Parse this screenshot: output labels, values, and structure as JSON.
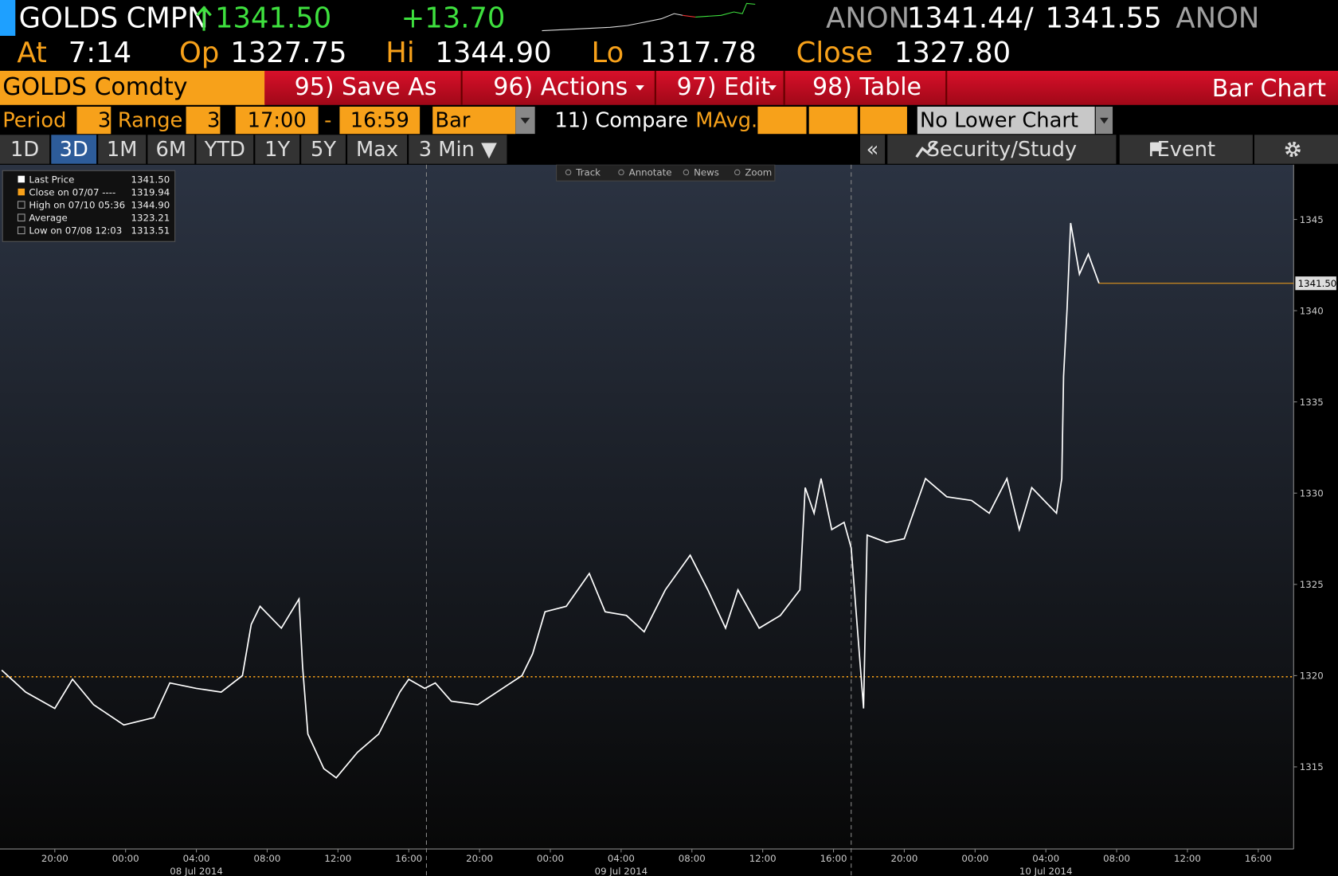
{
  "header": {
    "ticker": "GOLDS",
    "source": "CMPN",
    "last": "1341.50",
    "change": "+13.70",
    "bid_source": "ANON",
    "bid": "1341.44",
    "separator": "/",
    "ask": "1341.55",
    "ask_source": "ANON"
  },
  "quote": {
    "at_label": "At",
    "time": "7:14",
    "open_label": "Op",
    "open": "1327.75",
    "high_label": "Hi",
    "high": "1344.90",
    "low_label": "Lo",
    "low": "1317.78",
    "close_label": "Close",
    "close": "1327.80"
  },
  "menu": {
    "security": "GOLDS Comdty",
    "buttons": [
      "95) Save As",
      "96) Actions",
      "97) Edit",
      "98) Table"
    ],
    "title": "Bar Chart"
  },
  "params": {
    "period_label": "Period",
    "period": "3",
    "range_label": "Range",
    "range": "3",
    "start": "17:00",
    "dash": "-",
    "end": "16:59",
    "style": "Bar",
    "compare": "11) Compare",
    "mavg": "MAvg.",
    "lower": "No Lower Chart"
  },
  "tabs": [
    "1D",
    "3D",
    "1M",
    "6M",
    "YTD",
    "1Y",
    "5Y",
    "Max",
    "3 Min ▼"
  ],
  "side_tabs": {
    "collapse": "«",
    "study": "Security/Study",
    "event": "Event"
  },
  "toolbar": [
    "Track",
    "Annotate",
    "News",
    "Zoom"
  ],
  "legend": [
    {
      "name": "Last Price",
      "value": "1341.50"
    },
    {
      "name": "Close on 07/07 ----",
      "value": "1319.94"
    },
    {
      "name": "High on 07/10 05:36",
      "value": "1344.90"
    },
    {
      "name": "Average",
      "value": "1323.21"
    },
    {
      "name": "Low on 07/08 12:03",
      "value": "1313.51"
    }
  ],
  "chart_data": {
    "type": "line",
    "grid": false,
    "series": [
      {
        "name": "Last Price",
        "color": "#ffffff",
        "x": [
          0,
          1.35,
          3.0,
          4.0,
          5.2,
          6.9,
          8.6,
          9.5,
          11.0,
          12.4,
          13.6,
          14.1,
          14.6,
          15.8,
          16.8,
          17.0,
          17.3,
          18.2,
          18.9,
          20.1,
          21.3,
          22.5,
          23.0,
          23.9,
          24.5,
          25.4,
          26.9,
          28.3,
          29.4,
          30.0,
          30.7,
          31.9,
          33.2,
          34.1,
          35.3,
          36.3,
          37.5,
          38.9,
          39.9,
          40.9,
          41.6,
          42.8,
          44.0,
          45.1,
          45.4,
          45.9,
          46.3,
          46.9,
          47.6,
          48.0,
          48.7,
          48.9,
          50.0,
          51.0,
          52.2,
          53.4,
          54.8,
          55.8,
          56.8,
          57.5,
          58.2,
          59.6,
          59.9,
          60.0,
          60.2,
          60.4,
          60.9,
          61.4,
          62.0
        ],
        "values": [
          1320.3,
          1319.1,
          1318.2,
          1319.8,
          1318.4,
          1317.3,
          1317.7,
          1319.6,
          1319.3,
          1319.1,
          1320.0,
          1322.8,
          1323.8,
          1322.6,
          1324.2,
          1320.5,
          1316.8,
          1314.9,
          1314.4,
          1315.8,
          1316.8,
          1319.1,
          1319.8,
          1319.3,
          1319.6,
          1318.6,
          1318.4,
          1319.3,
          1320.0,
          1321.2,
          1323.5,
          1323.8,
          1325.6,
          1323.5,
          1323.3,
          1322.4,
          1324.7,
          1326.6,
          1324.7,
          1322.6,
          1324.7,
          1322.6,
          1323.3,
          1324.7,
          1330.3,
          1328.9,
          1330.8,
          1328.0,
          1328.4,
          1327.0,
          1318.2,
          1327.7,
          1327.3,
          1327.5,
          1330.8,
          1329.8,
          1329.6,
          1328.9,
          1330.8,
          1328.0,
          1330.3,
          1328.9,
          1330.8,
          1336.4,
          1340.1,
          1344.8,
          1342.0,
          1343.1,
          1341.5
        ]
      }
    ],
    "last_price": {
      "value": 1341.5,
      "label": "1341.50"
    },
    "close_line": 1319.94,
    "session_breaks": [
      24,
      48
    ],
    "xlim": [
      0,
      73
    ],
    "ylim": [
      1310.5,
      1348
    ],
    "yticks": [
      1315,
      1320,
      1325,
      1330,
      1335,
      1340,
      1345
    ],
    "xticks": [
      {
        "value": 3,
        "label": "20:00"
      },
      {
        "value": 7,
        "label": "00:00"
      },
      {
        "value": 11,
        "label": "04:00"
      },
      {
        "value": 15,
        "label": "08:00"
      },
      {
        "value": 19,
        "label": "12:00"
      },
      {
        "value": 23,
        "label": "16:00"
      },
      {
        "value": 27,
        "label": "20:00"
      },
      {
        "value": 31,
        "label": "00:00"
      },
      {
        "value": 35,
        "label": "04:00"
      },
      {
        "value": 39,
        "label": "08:00"
      },
      {
        "value": 43,
        "label": "12:00"
      },
      {
        "value": 47,
        "label": "16:00"
      },
      {
        "value": 51,
        "label": "20:00"
      },
      {
        "value": 55,
        "label": "00:00"
      },
      {
        "value": 59,
        "label": "04:00"
      },
      {
        "value": 63,
        "label": "08:00"
      },
      {
        "value": 67,
        "label": "12:00"
      },
      {
        "value": 71,
        "label": "16:00"
      }
    ],
    "date_ticks": [
      {
        "value": 11,
        "label": "08 Jul 2014"
      },
      {
        "value": 35,
        "label": "09 Jul 2014"
      },
      {
        "value": 59,
        "label": "10 Jul 2014"
      }
    ]
  }
}
